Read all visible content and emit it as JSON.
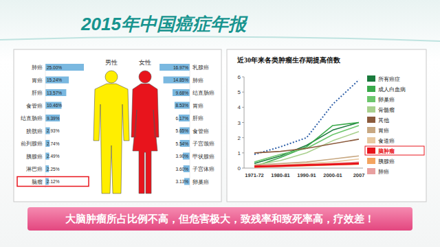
{
  "header": {
    "title": "2015年中国癌症年报"
  },
  "footer": {
    "text": "大脑肿瘤所占比例不高，但危害极大，致残率和致死率高，疗效差！"
  },
  "chart_data": [
    {
      "type": "bar",
      "title": "男性",
      "orientation": "horizontal",
      "categories": [
        "肺癌",
        "胃癌",
        "肝癌",
        "食管癌",
        "结直肠癌",
        "膀胱癌",
        "前列腺癌",
        "胰腺癌",
        "淋巴癌",
        "脑瘤"
      ],
      "values": [
        25.0,
        15.24,
        13.57,
        10.46,
        9.39,
        2.93,
        2.74,
        2.49,
        2.25,
        2.12
      ],
      "value_labels": [
        "25.00%",
        "15.24%",
        "13.57%",
        "10.46%",
        "9.39%",
        "2.93%",
        "2.74%",
        "2.49%",
        "2.25%",
        "2.12%"
      ],
      "color": "#7ab8e0",
      "xlim": [
        0,
        25
      ],
      "tick_labels": "y",
      "data_labels": true
    },
    {
      "type": "bar",
      "title": "女性",
      "orientation": "horizontal",
      "categories": [
        "乳腺癌",
        "肺癌",
        "结直肠癌",
        "胃癌",
        "肝癌",
        "食管癌",
        "子宫颈癌",
        "甲状腺癌",
        "子宫体癌",
        "卵巢癌"
      ],
      "values": [
        16.97,
        14.85,
        9.68,
        8.53,
        6.17,
        5.65,
        5.54,
        3.9,
        3.6,
        3.13
      ],
      "value_labels": [
        "16.97%",
        "14.85%",
        "9.68%",
        "8.53%",
        "6.17%",
        "5.65%",
        "5.54%",
        "3.90%",
        "3.60%",
        "3.13%"
      ],
      "color": "#7ab8e0",
      "xlim": [
        0,
        17
      ],
      "tick_labels": "y",
      "data_labels": true
    },
    {
      "type": "line",
      "title": "近30年来各类肿瘤生存期提高倍数",
      "categories": [
        "1971-72",
        "1980-81",
        "1990-91",
        "2000-01",
        "2007"
      ],
      "ylim": [
        0,
        6
      ],
      "yticks": [
        0,
        1,
        2,
        3,
        4,
        5,
        6
      ],
      "grid": false,
      "legend": "right",
      "series": [
        {
          "color": "#2e5fa8",
          "line_style": "dotted",
          "values": [
            0.9,
            1.4,
            2.0,
            4.2,
            5.8
          ]
        },
        {
          "name": "所有癌症",
          "color": "#1a7a3c",
          "line_style": "solid",
          "values": [
            0.3,
            0.8,
            1.5,
            2.5,
            3.0
          ]
        },
        {
          "name": "成人白血病",
          "color": "#3aaa4a",
          "line_style": "solid",
          "values": [
            0.1,
            0.7,
            1.4,
            2.8,
            3.0
          ]
        },
        {
          "name": "卵巢癌",
          "color": "#6cc66c",
          "line_style": "solid",
          "values": [
            0.4,
            0.9,
            1.3,
            2.2,
            2.8
          ]
        },
        {
          "name": "骨髓瘤",
          "color": "#a8d08d",
          "line_style": "solid",
          "values": [
            0.2,
            0.5,
            1.0,
            1.8,
            2.4
          ]
        },
        {
          "name": "其他",
          "color": "#8b5a3c",
          "line_style": "solid",
          "values": [
            1.0,
            1.1,
            1.3,
            1.6,
            1.9
          ]
        },
        {
          "name": "胃癌",
          "color": "#c8a882",
          "line_style": "solid",
          "values": [
            0.2,
            0.3,
            0.4,
            0.6,
            0.8
          ]
        },
        {
          "name": "食道癌",
          "color": "#e8c8a0",
          "line_style": "solid",
          "values": [
            0.1,
            0.2,
            0.3,
            0.4,
            0.6
          ]
        },
        {
          "name": "脑肿瘤",
          "color": "#e8141c",
          "line_style": "solid",
          "values": [
            0.1,
            0.15,
            0.2,
            0.25,
            0.3
          ]
        },
        {
          "name": "胰腺癌",
          "color": "#f4a460",
          "line_style": "solid",
          "values": [
            0.05,
            0.1,
            0.15,
            0.2,
            0.25
          ]
        },
        {
          "name": "肺癌",
          "color": "#e8a0a0",
          "line_style": "solid",
          "values": [
            0.1,
            0.15,
            0.2,
            0.3,
            0.4
          ]
        }
      ]
    }
  ]
}
